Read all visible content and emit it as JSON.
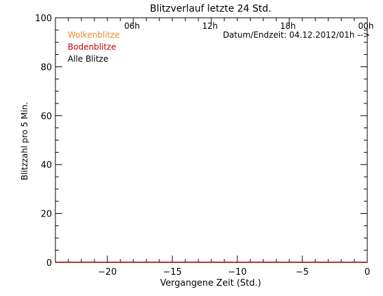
{
  "chart_data": {
    "type": "line",
    "title": "Blitzverlauf letzte 24 Std.",
    "xlabel": "Vergangene Zeit (Std.)",
    "ylabel": "Blitzzahl pro 5 Min.",
    "xlim": [
      -24,
      0
    ],
    "ylim": [
      0,
      100
    ],
    "x_major_ticks": [
      -20,
      -15,
      -10,
      -5,
      0
    ],
    "x_tick_labels": [
      "−20",
      "−15",
      "−10",
      "−5",
      "0"
    ],
    "y_major_ticks": [
      0,
      20,
      40,
      60,
      80,
      100
    ],
    "y_tick_labels": [
      "0",
      "20",
      "40",
      "60",
      "80",
      "100"
    ],
    "top_axis": {
      "ticks": [
        -18,
        -12,
        -6,
        0
      ],
      "labels": [
        "06h",
        "12h",
        "18h",
        "00h"
      ]
    },
    "annotation": "Datum/Endzeit: 04.12.2012/01h -->",
    "grid": false,
    "legend_position": "top-left",
    "series": [
      {
        "name": "Wolkenblitze",
        "color": "#f08a2a",
        "x": [
          -24,
          0
        ],
        "y": [
          0,
          0
        ]
      },
      {
        "name": "Bodenblitze",
        "color": "#c00000",
        "x": [
          -24,
          0
        ],
        "y": [
          0,
          0
        ]
      },
      {
        "name": "Alle Blitze",
        "color": "#000000",
        "x": [
          -24,
          0
        ],
        "y": [
          0,
          0
        ]
      }
    ]
  }
}
